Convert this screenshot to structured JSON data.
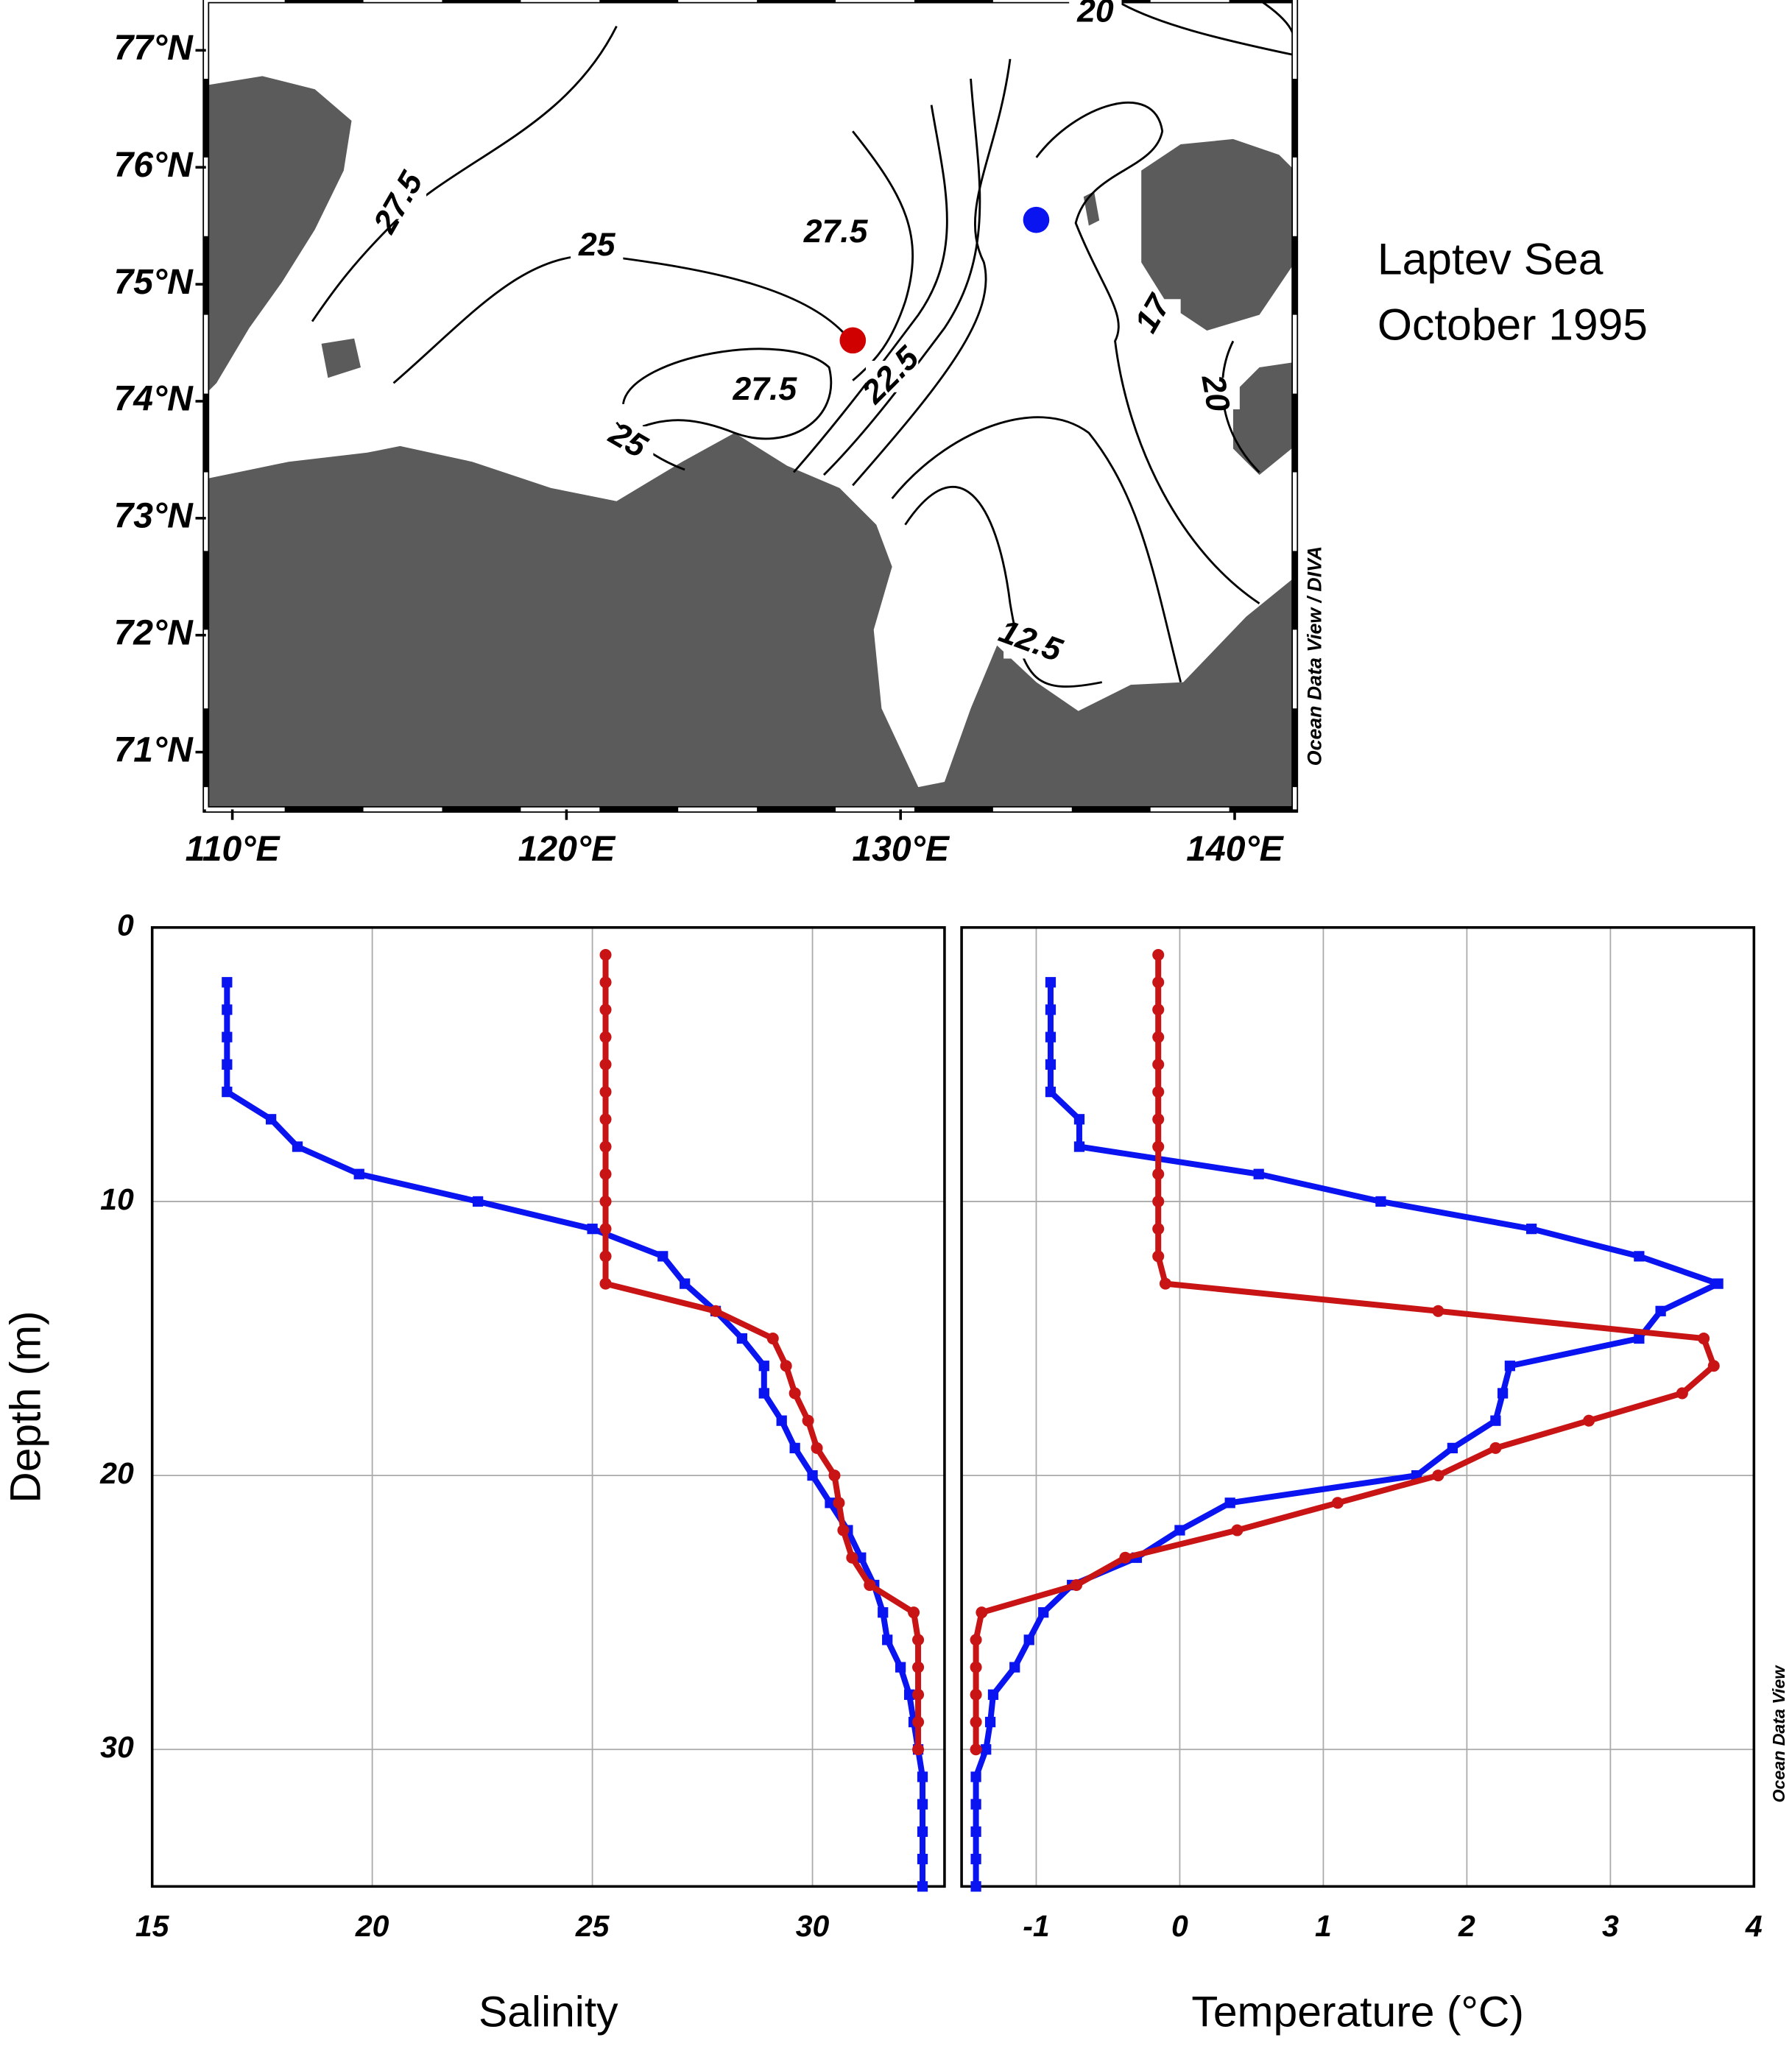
{
  "chart_data": [
    {
      "type": "map",
      "title": "Laptev Sea",
      "subtitle": "October 1995",
      "credit": "Ocean Data View / DIVA",
      "xlim": [
        109.21,
        141.8
      ],
      "ylim": [
        70.51,
        77.43
      ],
      "xticks": [
        {
          "value": 110,
          "label": "110°E"
        },
        {
          "value": 120,
          "label": "120°E"
        },
        {
          "value": 130,
          "label": "130°E"
        },
        {
          "value": 140,
          "label": "140°E"
        }
      ],
      "yticks": [
        {
          "value": 71,
          "label": "71°N"
        },
        {
          "value": 72,
          "label": "72°N"
        },
        {
          "value": 73,
          "label": "73°N"
        },
        {
          "value": 74,
          "label": "74°N"
        },
        {
          "value": 75,
          "label": "75°N"
        },
        {
          "value": 76,
          "label": "76°N"
        },
        {
          "value": 77,
          "label": "77°N"
        }
      ],
      "contour_labels": [
        "20",
        "27.5",
        "25",
        "27.5",
        "22.5",
        "27.5",
        "25",
        "17",
        "20",
        "12.5"
      ],
      "series": [
        {
          "color": "#d00000",
          "x": [
            128.57
          ],
          "y": [
            74.52
          ]
        },
        {
          "color": "#0a14f0",
          "x": [
            134.06
          ],
          "y": [
            75.55
          ]
        }
      ]
    },
    {
      "type": "profile",
      "xlabel": "Salinity",
      "ylabel": "Depth (m)",
      "credit": "Ocean Data View",
      "xlim": [
        15,
        33
      ],
      "ylim": [
        0,
        35
      ],
      "xticks": [
        15,
        20,
        25,
        30
      ],
      "yticks": [
        0,
        10,
        20,
        30
      ],
      "grid": true,
      "show_ytick_labels": true,
      "series": [
        {
          "color": "#0a14f0",
          "marker": "square",
          "depth": [
            2,
            3,
            4,
            5,
            6,
            7,
            8,
            9,
            10,
            11,
            12,
            13,
            14,
            15,
            16,
            17,
            18,
            19,
            20,
            21,
            22,
            23,
            24,
            25,
            26,
            27,
            28,
            29,
            30,
            31,
            32,
            33,
            34,
            35
          ],
          "values": [
            16.7,
            16.7,
            16.7,
            16.7,
            16.7,
            17.7,
            18.3,
            19.7,
            22.4,
            25.0,
            26.6,
            27.1,
            27.8,
            28.4,
            28.9,
            28.9,
            29.3,
            29.6,
            30.0,
            30.4,
            30.8,
            31.1,
            31.4,
            31.6,
            31.7,
            32.0,
            32.2,
            32.3,
            32.4,
            32.5,
            32.5,
            32.5,
            32.5,
            32.5
          ]
        },
        {
          "color": "#c81414",
          "marker": "circle",
          "depth": [
            1,
            2,
            3,
            4,
            5,
            6,
            7,
            8,
            9,
            10,
            11,
            12,
            13,
            14,
            15,
            16,
            17,
            18,
            19,
            20,
            21,
            22,
            23,
            24,
            25,
            26,
            27,
            28,
            29,
            30
          ],
          "values": [
            25.3,
            25.3,
            25.3,
            25.3,
            25.3,
            25.3,
            25.3,
            25.3,
            25.3,
            25.3,
            25.3,
            25.3,
            25.3,
            27.8,
            29.1,
            29.4,
            29.6,
            29.9,
            30.1,
            30.5,
            30.6,
            30.7,
            30.9,
            31.3,
            32.3,
            32.4,
            32.4,
            32.4,
            32.4,
            32.4
          ]
        }
      ]
    },
    {
      "type": "profile",
      "xlabel": "Temperature (°C)",
      "xlim": [
        -1.52,
        4
      ],
      "ylim": [
        0,
        35
      ],
      "xticks": [
        -1,
        0,
        1,
        2,
        3,
        4
      ],
      "yticks": [
        0,
        10,
        20,
        30
      ],
      "grid": true,
      "show_ytick_labels": false,
      "series": [
        {
          "color": "#0a14f0",
          "marker": "square",
          "depth": [
            2,
            3,
            4,
            5,
            6,
            7,
            8,
            9,
            10,
            11,
            12,
            13,
            14,
            15,
            16,
            17,
            18,
            19,
            20,
            21,
            22,
            23,
            24,
            25,
            26,
            27,
            28,
            29,
            30,
            31,
            32,
            33,
            34,
            35
          ],
          "values": [
            -0.9,
            -0.9,
            -0.9,
            -0.9,
            -0.9,
            -0.7,
            -0.7,
            0.55,
            1.4,
            2.45,
            3.2,
            3.75,
            3.35,
            3.2,
            2.3,
            2.25,
            2.2,
            1.9,
            1.65,
            0.35,
            0.0,
            -0.3,
            -0.75,
            -0.95,
            -1.05,
            -1.15,
            -1.3,
            -1.32,
            -1.35,
            -1.42,
            -1.42,
            -1.42,
            -1.42,
            -1.42
          ]
        },
        {
          "color": "#c81414",
          "marker": "circle",
          "depth": [
            1,
            2,
            3,
            4,
            5,
            6,
            7,
            8,
            9,
            10,
            11,
            12,
            13,
            14,
            15,
            16,
            17,
            18,
            19,
            20,
            21,
            22,
            23,
            24,
            25,
            26,
            27,
            28,
            29,
            30
          ],
          "values": [
            -0.15,
            -0.15,
            -0.15,
            -0.15,
            -0.15,
            -0.15,
            -0.15,
            -0.15,
            -0.15,
            -0.15,
            -0.15,
            -0.15,
            -0.1,
            1.8,
            3.65,
            3.72,
            3.5,
            2.85,
            2.2,
            1.8,
            1.1,
            0.4,
            -0.38,
            -0.72,
            -1.38,
            -1.42,
            -1.42,
            -1.42,
            -1.42,
            -1.42
          ]
        }
      ]
    }
  ]
}
